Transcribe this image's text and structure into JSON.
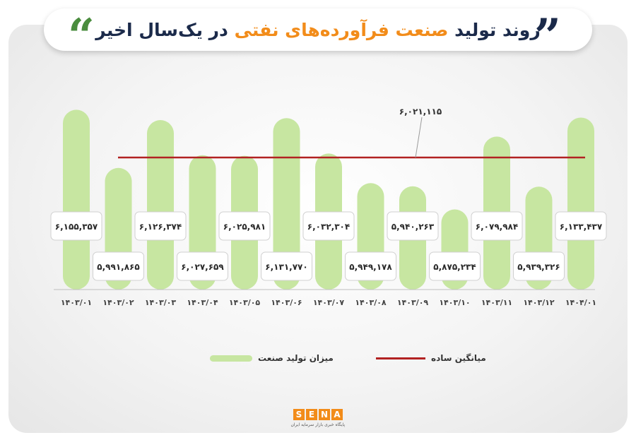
{
  "title": {
    "pre": "روند تولید ",
    "highlight": "صنعت فرآورده‌های نفتی",
    "post": " در یک‌سال اخیر"
  },
  "colors": {
    "bar": "#c7e6a1",
    "mean_line": "#b22222",
    "title_dark": "#1b2a4a",
    "accent": "#f28c1a"
  },
  "chart_data": {
    "type": "bar",
    "categories": [
      "۱۴۰۳/۰۱",
      "۱۴۰۳/۰۲",
      "۱۴۰۳/۰۳",
      "۱۴۰۳/۰۴",
      "۱۴۰۳/۰۵",
      "۱۴۰۳/۰۶",
      "۱۴۰۳/۰۷",
      "۱۴۰۳/۰۸",
      "۱۴۰۳/۰۹",
      "۱۴۰۳/۱۰",
      "۱۴۰۳/۱۱",
      "۱۴۰۳/۱۲",
      "۱۴۰۴/۰۱"
    ],
    "series": [
      {
        "name": "میزان تولید صنعت",
        "values": [
          6155357,
          5991865,
          6126374,
          6027659,
          6025981,
          6131770,
          6032304,
          5949178,
          5940263,
          5875234,
          6079984,
          5939326,
          6133437
        ],
        "labels": [
          "۶,۱۵۵,۳۵۷",
          "۵,۹۹۱,۸۶۵",
          "۶,۱۲۶,۳۷۴",
          "۶,۰۲۷,۶۵۹",
          "۶,۰۲۵,۹۸۱",
          "۶,۱۳۱,۷۷۰",
          "۶,۰۳۲,۳۰۴",
          "۵,۹۴۹,۱۷۸",
          "۵,۹۴۰,۲۶۳",
          "۵,۸۷۵,۲۳۴",
          "۶,۰۷۹,۹۸۴",
          "۵,۹۳۹,۳۲۶",
          "۶,۱۳۳,۴۳۷"
        ]
      }
    ],
    "mean": {
      "name": "میانگین ساده",
      "value": 6021115,
      "label": "۶,۰۲۱,۱۱۵"
    },
    "ylim": [
      5650000,
      6180000
    ],
    "grid": false,
    "legend_position": "bottom"
  },
  "logo": {
    "letters": [
      "S",
      "E",
      "N",
      "A"
    ],
    "tagline": "پایگاه خبری بازار سرمایه ایران"
  }
}
